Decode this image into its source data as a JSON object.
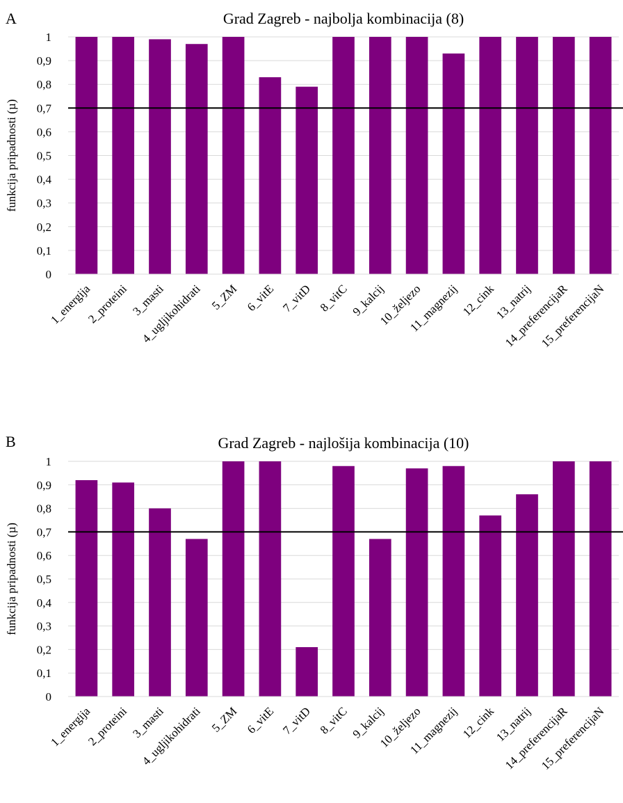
{
  "chart_data": [
    {
      "panel_label": "A",
      "type": "bar",
      "title": "Grad Zagreb - najbolja kombinacija (8)",
      "xlabel": "",
      "ylabel": "funkcija pripadnosti (µ)",
      "ylim": [
        0,
        1
      ],
      "y_ticks": [
        "0",
        "0,1",
        "0,2",
        "0,3",
        "0,4",
        "0,5",
        "0,6",
        "0,7",
        "0,8",
        "0,9",
        "1"
      ],
      "threshold": 0.7,
      "bar_color": "#7e007e",
      "grid": true,
      "categories": [
        "1_energija",
        "2_proteini",
        "3_masti",
        "4_ugljikohidrati",
        "5_ZM",
        "6_vitE",
        "7_vitD",
        "8_vitC",
        "9_kalcij",
        "10_željezo",
        "11_magnezij",
        "12_cink",
        "13_natrij",
        "14_preferencijaR",
        "15_preferencijaN"
      ],
      "values": [
        1.0,
        1.0,
        0.99,
        0.97,
        1.0,
        0.83,
        0.79,
        1.0,
        1.0,
        1.0,
        0.93,
        1.0,
        1.0,
        1.0,
        1.0
      ]
    },
    {
      "panel_label": "B",
      "type": "bar",
      "title": "Grad Zagreb - najlošija kombinacija (10)",
      "xlabel": "",
      "ylabel": "funkcija pripadnosti (µ)",
      "ylim": [
        0,
        1
      ],
      "y_ticks": [
        "0",
        "0,1",
        "0,2",
        "0,3",
        "0,4",
        "0,5",
        "0,6",
        "0,7",
        "0,8",
        "0,9",
        "1"
      ],
      "threshold": 0.7,
      "bar_color": "#7e007e",
      "grid": true,
      "categories": [
        "1_energija",
        "2_proteini",
        "3_masti",
        "4_ugljikohidrati",
        "5_ZM",
        "6_vitE",
        "7_vitD",
        "8_vitC",
        "9_kalcij",
        "10_željezo",
        "11_magnezij",
        "12_cink",
        "13_natrij",
        "14_preferencijaR",
        "15_preferencijaN"
      ],
      "values": [
        0.92,
        0.91,
        0.8,
        0.67,
        1.0,
        1.0,
        0.21,
        0.98,
        0.67,
        0.97,
        0.98,
        0.77,
        0.86,
        1.0,
        1.0
      ]
    }
  ]
}
